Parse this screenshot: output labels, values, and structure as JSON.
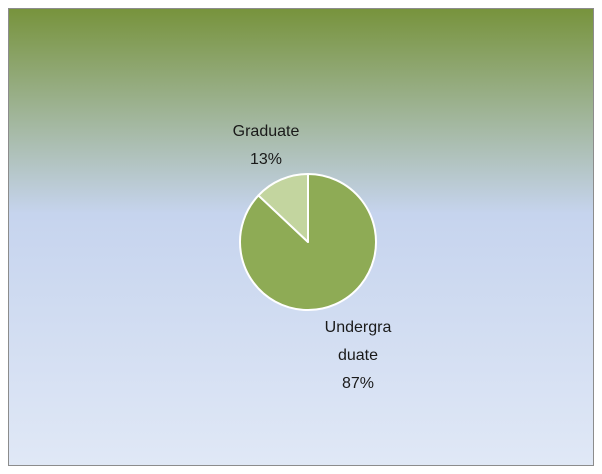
{
  "chart_data": {
    "type": "pie",
    "categories": [
      "Undergraduate",
      "Graduate"
    ],
    "values": [
      87,
      13
    ],
    "value_labels": [
      "87%",
      "13%"
    ],
    "colors": [
      "#8eab55",
      "#c3d59f"
    ]
  }
}
